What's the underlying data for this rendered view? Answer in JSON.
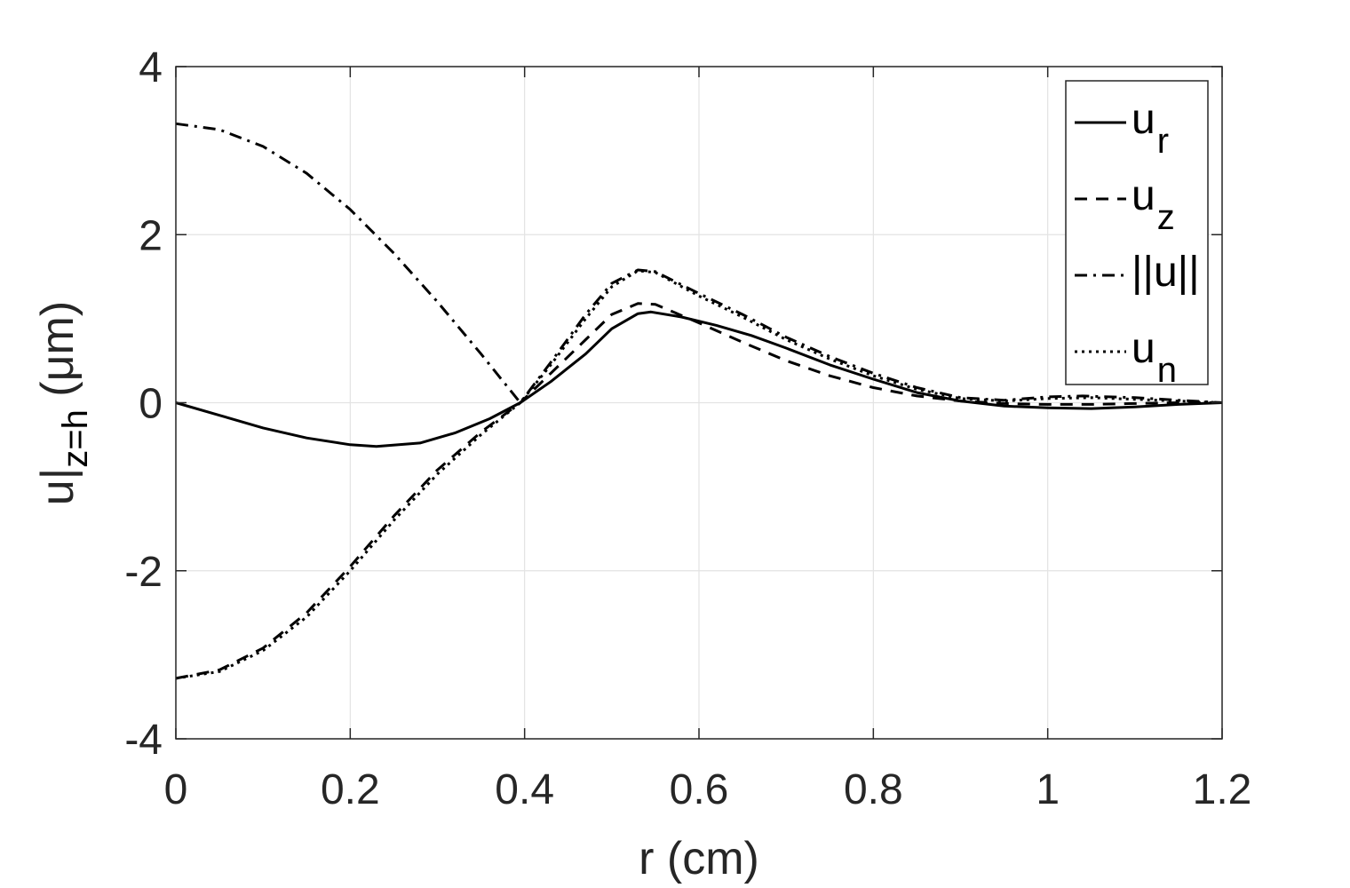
{
  "chart_data": {
    "type": "line",
    "xlabel": "r (cm)",
    "ylabel": {
      "base": "u|",
      "subscript": "z=h",
      "unit": "(μm)"
    },
    "xlim": [
      0,
      1.2
    ],
    "ylim": [
      -4,
      4
    ],
    "xticks": [
      "0",
      "0.2",
      "0.4",
      "0.6",
      "0.8",
      "1",
      "1.2"
    ],
    "yticks": [
      "4",
      "2",
      "0",
      "-2",
      "-4"
    ],
    "grid": true,
    "legend_position": "top-right",
    "series": [
      {
        "name": "u_r",
        "legend": {
          "base": "u",
          "subscript": "r"
        },
        "style": "solid",
        "points": [
          [
            0,
            0
          ],
          [
            0.05,
            -0.15
          ],
          [
            0.1,
            -0.3
          ],
          [
            0.15,
            -0.42
          ],
          [
            0.2,
            -0.5
          ],
          [
            0.23,
            -0.52
          ],
          [
            0.28,
            -0.48
          ],
          [
            0.32,
            -0.36
          ],
          [
            0.36,
            -0.19
          ],
          [
            0.395,
            0
          ],
          [
            0.43,
            0.25
          ],
          [
            0.47,
            0.58
          ],
          [
            0.5,
            0.88
          ],
          [
            0.53,
            1.06
          ],
          [
            0.545,
            1.08
          ],
          [
            0.58,
            1.02
          ],
          [
            0.62,
            0.92
          ],
          [
            0.66,
            0.8
          ],
          [
            0.7,
            0.65
          ],
          [
            0.75,
            0.45
          ],
          [
            0.8,
            0.28
          ],
          [
            0.85,
            0.12
          ],
          [
            0.9,
            0.02
          ],
          [
            0.95,
            -0.04
          ],
          [
            1.0,
            -0.06
          ],
          [
            1.05,
            -0.07
          ],
          [
            1.1,
            -0.05
          ],
          [
            1.15,
            -0.02
          ],
          [
            1.2,
            0
          ]
        ]
      },
      {
        "name": "u_z",
        "legend": {
          "base": "u",
          "subscript": "z"
        },
        "style": "dashed",
        "points": [
          [
            0,
            -3.28
          ],
          [
            0.05,
            -3.18
          ],
          [
            0.1,
            -2.92
          ],
          [
            0.15,
            -2.5
          ],
          [
            0.2,
            -1.95
          ],
          [
            0.25,
            -1.35
          ],
          [
            0.3,
            -0.8
          ],
          [
            0.35,
            -0.35
          ],
          [
            0.395,
            0
          ],
          [
            0.43,
            0.35
          ],
          [
            0.47,
            0.75
          ],
          [
            0.5,
            1.05
          ],
          [
            0.53,
            1.18
          ],
          [
            0.55,
            1.17
          ],
          [
            0.6,
            0.95
          ],
          [
            0.65,
            0.72
          ],
          [
            0.7,
            0.5
          ],
          [
            0.75,
            0.32
          ],
          [
            0.8,
            0.18
          ],
          [
            0.85,
            0.08
          ],
          [
            0.9,
            0.02
          ],
          [
            0.95,
            -0.01
          ],
          [
            1.0,
            -0.02
          ],
          [
            1.05,
            -0.02
          ],
          [
            1.1,
            -0.01
          ],
          [
            1.15,
            0
          ],
          [
            1.2,
            0
          ]
        ]
      },
      {
        "name": "||u||",
        "legend": {
          "base": "||u||",
          "subscript": ""
        },
        "style": "dashdot",
        "points": [
          [
            0,
            3.32
          ],
          [
            0.05,
            3.25
          ],
          [
            0.1,
            3.05
          ],
          [
            0.15,
            2.73
          ],
          [
            0.2,
            2.3
          ],
          [
            0.25,
            1.78
          ],
          [
            0.3,
            1.2
          ],
          [
            0.35,
            0.58
          ],
          [
            0.395,
            0
          ],
          [
            0.43,
            0.48
          ],
          [
            0.47,
            1.05
          ],
          [
            0.5,
            1.42
          ],
          [
            0.53,
            1.58
          ],
          [
            0.55,
            1.56
          ],
          [
            0.6,
            1.3
          ],
          [
            0.65,
            1.05
          ],
          [
            0.7,
            0.78
          ],
          [
            0.75,
            0.55
          ],
          [
            0.8,
            0.35
          ],
          [
            0.85,
            0.18
          ],
          [
            0.9,
            0.06
          ],
          [
            0.95,
            0.03
          ],
          [
            1.0,
            0.07
          ],
          [
            1.04,
            0.08
          ],
          [
            1.1,
            0.06
          ],
          [
            1.15,
            0.03
          ],
          [
            1.2,
            0
          ]
        ]
      },
      {
        "name": "u_n",
        "legend": {
          "base": "u",
          "subscript": "n"
        },
        "style": "dotted",
        "points": [
          [
            0,
            -3.28
          ],
          [
            0.05,
            -3.2
          ],
          [
            0.1,
            -2.95
          ],
          [
            0.15,
            -2.55
          ],
          [
            0.2,
            -2.0
          ],
          [
            0.25,
            -1.4
          ],
          [
            0.3,
            -0.85
          ],
          [
            0.35,
            -0.38
          ],
          [
            0.395,
            0
          ],
          [
            0.43,
            0.45
          ],
          [
            0.47,
            1.0
          ],
          [
            0.5,
            1.38
          ],
          [
            0.53,
            1.57
          ],
          [
            0.55,
            1.55
          ],
          [
            0.6,
            1.27
          ],
          [
            0.65,
            1.02
          ],
          [
            0.7,
            0.75
          ],
          [
            0.75,
            0.52
          ],
          [
            0.8,
            0.32
          ],
          [
            0.85,
            0.16
          ],
          [
            0.9,
            0.05
          ],
          [
            0.95,
            0.02
          ],
          [
            1.0,
            0.05
          ],
          [
            1.05,
            0.06
          ],
          [
            1.1,
            0.04
          ],
          [
            1.15,
            0.02
          ],
          [
            1.2,
            0
          ]
        ]
      }
    ]
  }
}
